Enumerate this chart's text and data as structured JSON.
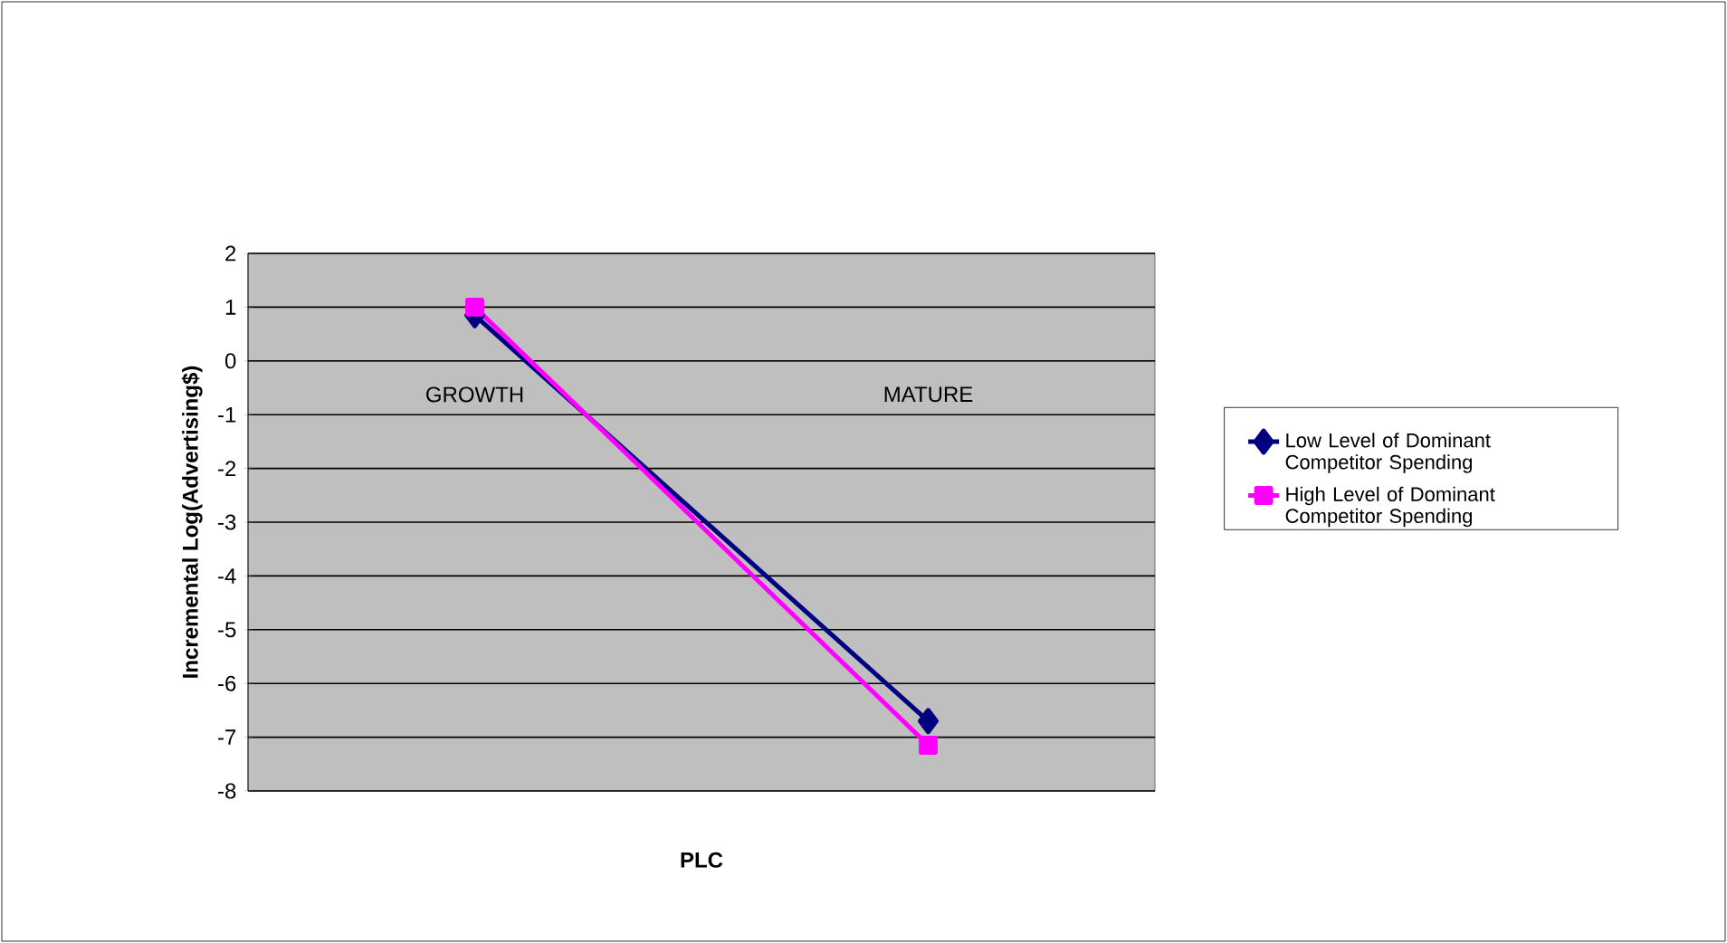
{
  "chart_data": {
    "type": "line",
    "xlabel": "PLC",
    "ylabel": "Incremental Log(Advertising$)",
    "categories": [
      "GROWTH",
      "MATURE"
    ],
    "series": [
      {
        "name": "Low Level of Dominant Competitor Spending",
        "color": "#000080",
        "marker": "diamond",
        "values": [
          0.85,
          -6.7
        ]
      },
      {
        "name": "High Level of Dominant Competitor Spending",
        "color": "#ff00ff",
        "marker": "square",
        "values": [
          1.0,
          -7.15
        ]
      }
    ],
    "ylim": [
      -8,
      2
    ],
    "yticks": [
      -8,
      -7,
      -6,
      -5,
      -4,
      -3,
      -2,
      -1,
      0,
      1,
      2
    ],
    "grid": "y",
    "legend": "right",
    "line_style": "solid"
  }
}
